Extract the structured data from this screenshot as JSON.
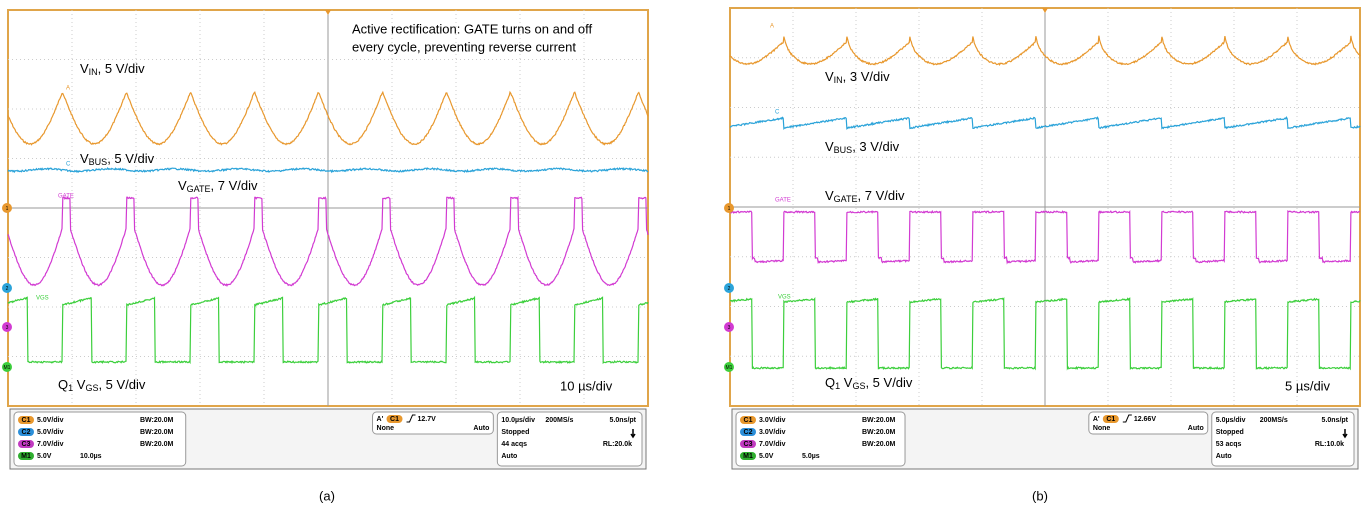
{
  "panels": [
    {
      "caption": "(a)",
      "annotation": [
        "Active rectification: GATE turns on and off",
        "every cycle, preventing reverse current"
      ],
      "timebase": "10 µs/div",
      "traces": [
        {
          "tag": "A",
          "label": [
            {
              "text": "V"
            },
            {
              "sub": "IN"
            },
            {
              "text": ", 5 V/div"
            }
          ]
        },
        {
          "tag": "C",
          "label": [
            {
              "text": "V"
            },
            {
              "sub": "BUS"
            },
            {
              "text": ", 5 V/div"
            }
          ]
        },
        {
          "tag": "GATE",
          "label": [
            {
              "text": "V"
            },
            {
              "sub": "GATE"
            },
            {
              "text": ", 7 V/div"
            }
          ]
        },
        {
          "tag": "VGS",
          "label": [
            {
              "text": "Q"
            },
            {
              "sub": "1"
            },
            {
              "text": " V"
            },
            {
              "sub": "GS"
            },
            {
              "text": ", 5 V/div"
            }
          ]
        }
      ],
      "markers": [
        "1",
        "2",
        "3",
        "M1"
      ],
      "status": {
        "channels": [
          {
            "badge": "C1",
            "scale": "5.0V/div",
            "extra": "BW:20.0M"
          },
          {
            "badge": "C2",
            "scale": "5.0V/div",
            "extra": "BW:20.0M"
          },
          {
            "badge": "C3",
            "scale": "7.0V/div",
            "extra": "BW:20.0M"
          },
          {
            "badge": "M1",
            "scale": "5.0V",
            "extra": "10.0µs"
          }
        ],
        "trigger": {
          "ref": "A'",
          "source": "C1",
          "level": "12.7V",
          "coupling": "None",
          "mode": "Auto"
        },
        "acq": {
          "rate": "10.0µs/div",
          "samp": "200MS/s",
          "res": "5.0ns/pt",
          "state": "Stopped",
          "count": "44 acqs",
          "rl": "RL:20.0k",
          "mode": "Auto"
        }
      }
    },
    {
      "caption": "(b)",
      "timebase": "5 µs/div",
      "traces": [
        {
          "tag": "A",
          "label": [
            {
              "text": "V"
            },
            {
              "sub": "IN"
            },
            {
              "text": ", 3 V/div"
            }
          ]
        },
        {
          "tag": "C",
          "label": [
            {
              "text": "V"
            },
            {
              "sub": "BUS"
            },
            {
              "text": ", 3 V/div"
            }
          ]
        },
        {
          "tag": "GATE",
          "label": [
            {
              "text": "V"
            },
            {
              "sub": "GATE"
            },
            {
              "text": ", 7 V/div"
            }
          ]
        },
        {
          "tag": "VGS",
          "label": [
            {
              "text": "Q"
            },
            {
              "sub": "1"
            },
            {
              "text": " V"
            },
            {
              "sub": "GS"
            },
            {
              "text": ", 5 V/div"
            }
          ]
        }
      ],
      "markers": [
        "1",
        "2",
        "3",
        "M1"
      ],
      "status": {
        "channels": [
          {
            "badge": "C1",
            "scale": "3.0V/div",
            "extra": "BW:20.0M"
          },
          {
            "badge": "C2",
            "scale": "3.0V/div",
            "extra": "BW:20.0M"
          },
          {
            "badge": "C3",
            "scale": "7.0V/div",
            "extra": "BW:20.0M"
          },
          {
            "badge": "M1",
            "scale": "5.0V",
            "extra": "5.0µs"
          }
        ],
        "trigger": {
          "ref": "A'",
          "source": "C1",
          "level": "12.66V",
          "coupling": "None",
          "mode": "Auto"
        },
        "acq": {
          "rate": "5.0µs/div",
          "samp": "200MS/s",
          "res": "5.0ns/pt",
          "state": "Stopped",
          "count": "53 acqs",
          "rl": "RL:10.0k",
          "mode": "Auto"
        }
      }
    }
  ]
}
